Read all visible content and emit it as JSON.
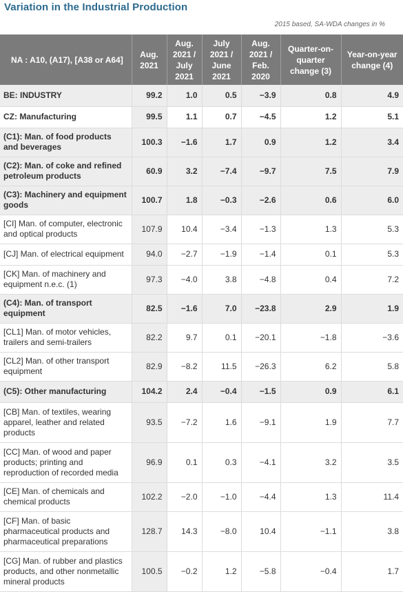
{
  "title": "Variation in the Industrial Production",
  "subtitle": "2015 based, SA-WDA changes in %",
  "headers": [
    "NA : A10, (A17), [A38 or A64]",
    "Aug. 2021",
    "Aug. 2021 / July 2021",
    "July 2021 / June 2021",
    "Aug. 2021 / Feb. 2020",
    "Quarter-on-quarter change (3)",
    "Year-on-year change (4)"
  ],
  "rows": [
    {
      "label": "BE: INDUSTRY",
      "values": [
        "99.2",
        "1.0",
        "0.5",
        "−3.9",
        "0.8",
        "4.9"
      ],
      "bold": true,
      "shaded": true,
      "h": 31
    },
    {
      "label": "CZ: Manufacturing",
      "values": [
        "99.5",
        "1.1",
        "0.7",
        "−4.5",
        "1.2",
        "5.1"
      ],
      "bold": true,
      "shaded": false,
      "h": 31
    },
    {
      "label": "(C1): Man. of food products and beverages",
      "values": [
        "100.3",
        "−1.6",
        "1.7",
        "0.9",
        "1.2",
        "3.4"
      ],
      "bold": true,
      "shaded": true,
      "h": 42
    },
    {
      "label": "(C2): Man. of coke and refined petroleum products",
      "values": [
        "60.9",
        "3.2",
        "−7.4",
        "−9.7",
        "7.5",
        "7.9"
      ],
      "bold": true,
      "shaded": true,
      "h": 42
    },
    {
      "label": "(C3): Machinery and equipment goods",
      "values": [
        "100.7",
        "1.8",
        "−0.3",
        "−2.6",
        "0.6",
        "6.0"
      ],
      "bold": true,
      "shaded": true,
      "h": 42
    },
    {
      "label": "[CI] Man. of computer, electronic and optical products",
      "values": [
        "107.9",
        "10.4",
        "−3.4",
        "−1.3",
        "1.3",
        "5.3"
      ],
      "bold": false,
      "shaded": false,
      "h": 42
    },
    {
      "label": "[CJ] Man. of electrical equipment",
      "values": [
        "94.0",
        "−2.7",
        "−1.9",
        "−1.4",
        "0.1",
        "5.3"
      ],
      "bold": false,
      "shaded": false,
      "h": 31
    },
    {
      "label": "[CK] Man. of machinery and equipment n.e.c. (1)",
      "values": [
        "97.3",
        "−4.0",
        "3.8",
        "−4.8",
        "0.4",
        "7.2"
      ],
      "bold": false,
      "shaded": false,
      "h": 42
    },
    {
      "label": "(C4): Man. of transport equipment",
      "values": [
        "82.5",
        "−1.6",
        "7.0",
        "−23.8",
        "2.9",
        "1.9"
      ],
      "bold": true,
      "shaded": true,
      "h": 42
    },
    {
      "label": "[CL1] Man. of motor vehicles, trailers and semi-trailers",
      "values": [
        "82.2",
        "9.7",
        "0.1",
        "−20.1",
        "−1.8",
        "−3.6"
      ],
      "bold": false,
      "shaded": false,
      "h": 42
    },
    {
      "label": "[CL2] Man. of other transport equipment",
      "values": [
        "82.9",
        "−8.2",
        "11.5",
        "−26.3",
        "6.2",
        "5.8"
      ],
      "bold": false,
      "shaded": false,
      "h": 42
    },
    {
      "label": "(C5): Other manufacturing",
      "values": [
        "104.2",
        "2.4",
        "−0.4",
        "−1.5",
        "0.9",
        "6.1"
      ],
      "bold": true,
      "shaded": true,
      "h": 31
    },
    {
      "label": "[CB] Man. of textiles, wearing apparel, leather and related products",
      "values": [
        "93.5",
        "−7.2",
        "1.6",
        "−9.1",
        "1.9",
        "7.7"
      ],
      "bold": false,
      "shaded": false,
      "h": 58
    },
    {
      "label": "[CC] Man. of wood and paper products; printing and reproduction of recorded media",
      "values": [
        "96.9",
        "0.1",
        "0.3",
        "−4.1",
        "3.2",
        "3.5"
      ],
      "bold": false,
      "shaded": false,
      "h": 58
    },
    {
      "label": "[CE] Man. of chemicals and chemical products",
      "values": [
        "102.2",
        "−2.0",
        "−1.0",
        "−4.4",
        "1.3",
        "11.4"
      ],
      "bold": false,
      "shaded": false,
      "h": 42
    },
    {
      "label": "[CF] Man. of basic pharmaceutical products and pharmaceutical preparations",
      "values": [
        "128.7",
        "14.3",
        "−8.0",
        "10.4",
        "−1.1",
        "3.8"
      ],
      "bold": false,
      "shaded": false,
      "h": 58
    },
    {
      "label": "[CG] Man. of rubber and plastics products, and other nonmetallic mineral products",
      "values": [
        "100.5",
        "−0.2",
        "1.2",
        "−5.8",
        "−0.4",
        "1.7"
      ],
      "bold": false,
      "shaded": false,
      "h": 58
    }
  ]
}
